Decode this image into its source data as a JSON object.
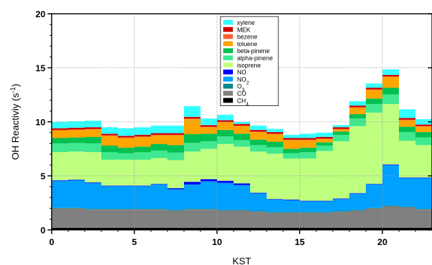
{
  "chart_data": {
    "type": "area",
    "stacked": true,
    "step": true,
    "xlabel": "KST",
    "ylabel_parts": {
      "main": "OH Reactiviy (s",
      "sup": "-1",
      "end": ")"
    },
    "xlim": [
      0,
      23
    ],
    "ylim": [
      0,
      20
    ],
    "xticks": [
      0,
      5,
      10,
      15,
      20
    ],
    "yticks": [
      0,
      5,
      10,
      15,
      20
    ],
    "grid": true,
    "legend_position": "top-center",
    "x": [
      0,
      1,
      2,
      3,
      4,
      5,
      6,
      7,
      8,
      9,
      10,
      11,
      12,
      13,
      14,
      15,
      16,
      17,
      18,
      19,
      20,
      21,
      22
    ],
    "series": [
      {
        "name": "CH",
        "sub": "4",
        "color": "#000000",
        "values": [
          0.2,
          0.2,
          0.2,
          0.2,
          0.2,
          0.2,
          0.2,
          0.2,
          0.2,
          0.2,
          0.2,
          0.2,
          0.2,
          0.2,
          0.2,
          0.2,
          0.2,
          0.2,
          0.2,
          0.2,
          0.2,
          0.2,
          0.2
        ]
      },
      {
        "name": "CO",
        "color": "#808080",
        "values": [
          1.8,
          1.8,
          1.7,
          1.7,
          1.7,
          1.7,
          1.7,
          1.6,
          1.7,
          1.7,
          1.6,
          1.6,
          1.5,
          1.4,
          1.4,
          1.4,
          1.4,
          1.5,
          1.6,
          1.8,
          2.0,
          1.9,
          1.7
        ]
      },
      {
        "name": "O",
        "sub": "3",
        "color": "#008b8b",
        "values": [
          0.05,
          0.05,
          0.05,
          0.05,
          0.05,
          0.05,
          0.05,
          0.05,
          0.05,
          0.05,
          0.05,
          0.05,
          0.05,
          0.05,
          0.05,
          0.05,
          0.05,
          0.05,
          0.05,
          0.05,
          0.05,
          0.05,
          0.05
        ]
      },
      {
        "name": "NO",
        "sub": "2",
        "color": "#00a0ff",
        "values": [
          2.5,
          2.55,
          2.4,
          2.1,
          2.1,
          2.1,
          2.25,
          1.9,
          2.25,
          2.55,
          2.5,
          2.3,
          1.65,
          1.15,
          1.1,
          1.0,
          1.0,
          1.1,
          1.5,
          2.15,
          3.75,
          2.65,
          2.85
        ]
      },
      {
        "name": "NO",
        "color": "#0000ff",
        "values": [
          0.05,
          0.05,
          0.05,
          0.05,
          0.05,
          0.05,
          0.05,
          0.1,
          0.25,
          0.2,
          0.2,
          0.15,
          0.05,
          0.05,
          0.05,
          0.05,
          0.05,
          0.05,
          0.05,
          0.05,
          0.05,
          0.05,
          0.05
        ]
      },
      {
        "name": "isoprene",
        "color": "#bfff80",
        "values": [
          2.6,
          2.6,
          2.8,
          2.4,
          2.4,
          2.4,
          2.4,
          2.6,
          2.8,
          2.8,
          3.4,
          3.4,
          3.8,
          4.2,
          3.8,
          3.9,
          4.6,
          5.3,
          6.2,
          6.6,
          5.6,
          3.4,
          3.0
        ]
      },
      {
        "name": "alpha-pinene",
        "color": "#40e890",
        "values": [
          0.8,
          0.8,
          0.8,
          0.7,
          0.6,
          0.7,
          0.7,
          0.7,
          0.8,
          0.7,
          0.7,
          0.6,
          0.6,
          0.6,
          0.5,
          0.6,
          0.5,
          0.6,
          0.7,
          0.8,
          0.9,
          0.8,
          0.7
        ]
      },
      {
        "name": "beta-pinene",
        "color": "#00c050",
        "values": [
          0.5,
          0.5,
          0.6,
          0.6,
          0.5,
          0.5,
          0.6,
          0.7,
          0.8,
          0.7,
          0.6,
          0.6,
          0.5,
          0.5,
          0.4,
          0.4,
          0.3,
          0.3,
          0.4,
          0.5,
          0.6,
          0.5,
          0.5
        ]
      },
      {
        "name": "toluene",
        "color": "#ffa500",
        "values": [
          0.7,
          0.7,
          0.7,
          0.9,
          0.9,
          0.9,
          0.8,
          0.9,
          1.4,
          0.6,
          0.7,
          0.7,
          0.7,
          0.7,
          0.8,
          0.7,
          0.3,
          0.2,
          0.6,
          0.8,
          1.0,
          0.6,
          0.5
        ]
      },
      {
        "name": "bezene",
        "color": "#ff6030",
        "values": [
          0.05,
          0.05,
          0.05,
          0.05,
          0.05,
          0.05,
          0.05,
          0.05,
          0.05,
          0.05,
          0.05,
          0.05,
          0.05,
          0.05,
          0.05,
          0.05,
          0.05,
          0.05,
          0.05,
          0.05,
          0.05,
          0.05,
          0.05
        ]
      },
      {
        "name": "MEK",
        "color": "#cc0000",
        "values": [
          0.15,
          0.15,
          0.15,
          0.15,
          0.15,
          0.15,
          0.15,
          0.15,
          0.15,
          0.15,
          0.15,
          0.15,
          0.15,
          0.15,
          0.15,
          0.15,
          0.15,
          0.15,
          0.15,
          0.15,
          0.15,
          0.15,
          0.15
        ]
      },
      {
        "name": "xylene",
        "color": "#33ffff",
        "values": [
          0.6,
          0.6,
          0.6,
          0.6,
          0.7,
          0.7,
          0.7,
          0.7,
          1.0,
          0.6,
          0.5,
          0.2,
          0.4,
          0.3,
          0.3,
          0.4,
          0.4,
          0.2,
          0.4,
          0.4,
          0.5,
          0.8,
          0.5
        ]
      }
    ]
  }
}
